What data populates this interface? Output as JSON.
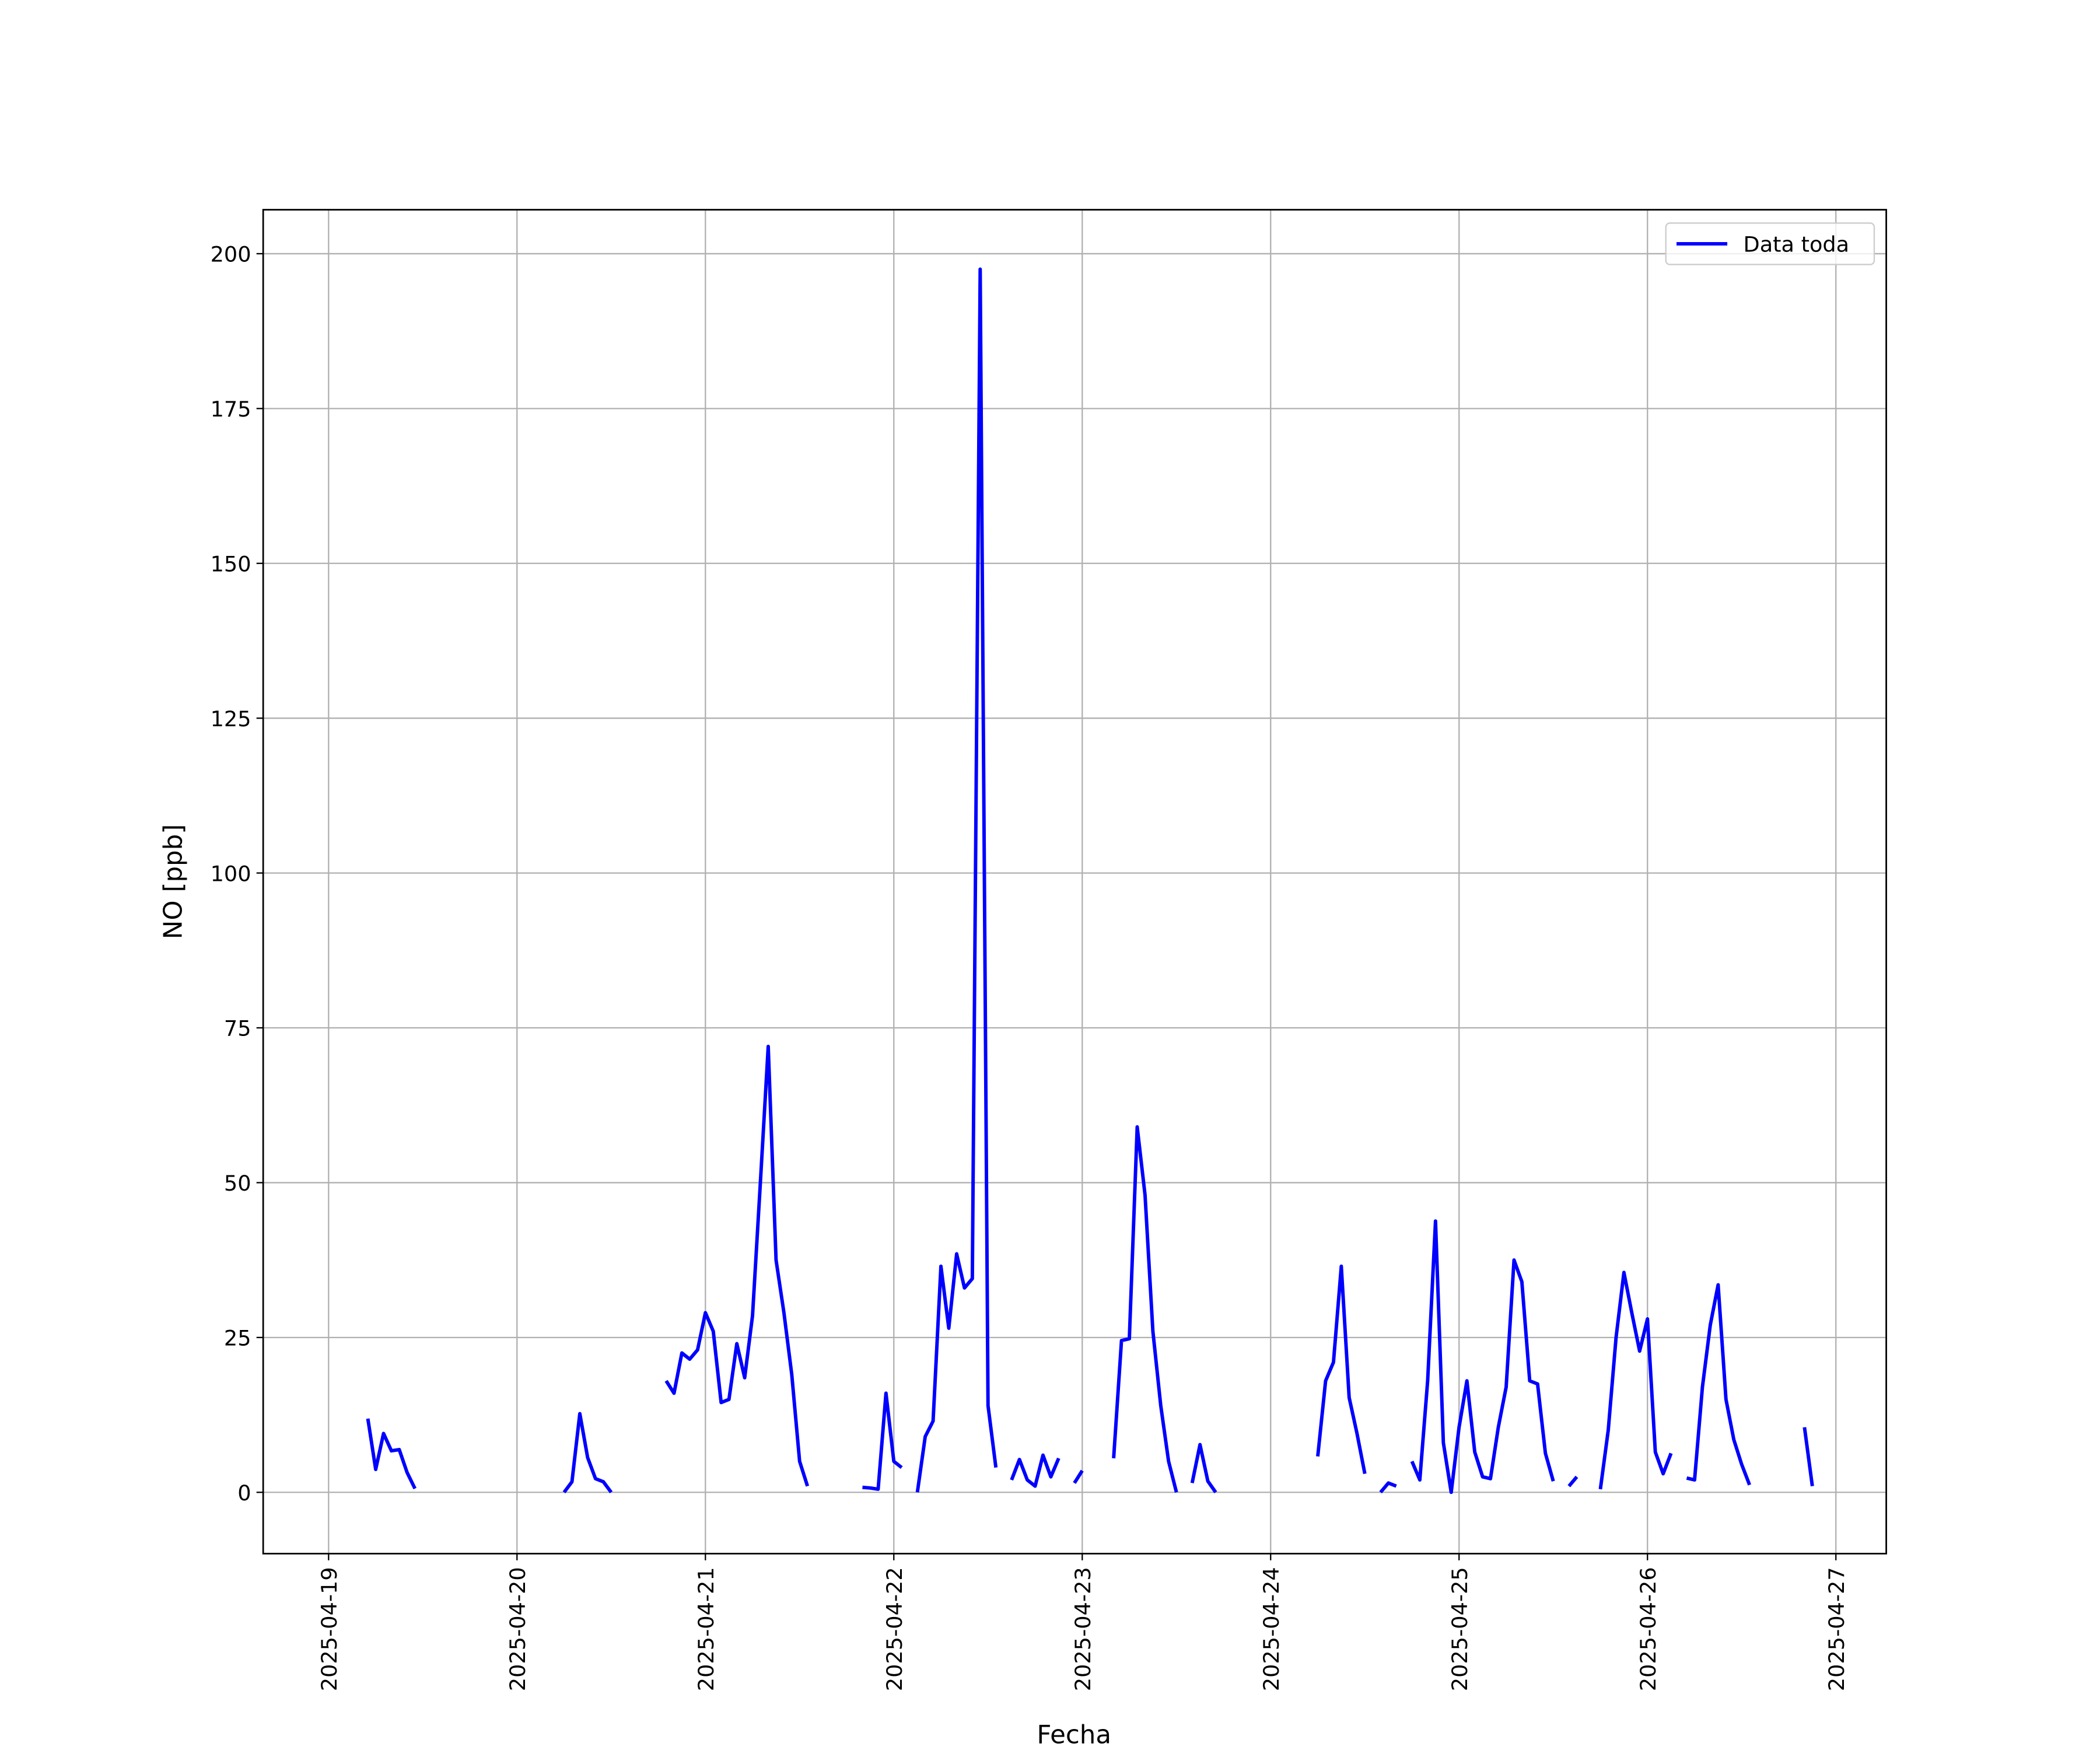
{
  "chart_data": {
    "type": "line",
    "xlabel": "Fecha",
    "ylabel": "NO [ppb]",
    "grid": true,
    "legend": "upper right",
    "xlim": [
      "2025-04-18 15:40",
      "2025-04-27 06:25"
    ],
    "xticks": [
      "2025-04-19",
      "2025-04-20",
      "2025-04-21",
      "2025-04-22",
      "2025-04-23",
      "2025-04-24",
      "2025-04-25",
      "2025-04-26",
      "2025-04-27"
    ],
    "ylim": [
      -9.9,
      207.1
    ],
    "yticks": [
      0,
      25,
      50,
      75,
      100,
      125,
      150,
      175,
      200
    ],
    "x": [
      "2025-04-19 05:00",
      "2025-04-19 06:00",
      "2025-04-19 07:00",
      "2025-04-19 08:00",
      "2025-04-19 09:00",
      "2025-04-19 10:00",
      "2025-04-19 11:00",
      "2025-04-19 12:00",
      "2025-04-20 06:00",
      "2025-04-20 07:00",
      "2025-04-20 08:00",
      "2025-04-20 09:00",
      "2025-04-20 10:00",
      "2025-04-20 11:00",
      "2025-04-20 12:00",
      "2025-04-20 13:00",
      "2025-04-20 19:00",
      "2025-04-20 20:00",
      "2025-04-20 21:00",
      "2025-04-20 22:00",
      "2025-04-20 23:00",
      "2025-04-21 00:00",
      "2025-04-21 01:00",
      "2025-04-21 02:00",
      "2025-04-21 03:00",
      "2025-04-21 04:00",
      "2025-04-21 05:00",
      "2025-04-21 06:00",
      "2025-04-21 07:00",
      "2025-04-21 08:00",
      "2025-04-21 09:00",
      "2025-04-21 10:00",
      "2025-04-21 11:00",
      "2025-04-21 12:00",
      "2025-04-21 13:00",
      "2025-04-21 14:00",
      "2025-04-21 20:00",
      "2025-04-21 21:00",
      "2025-04-21 22:00",
      "2025-04-21 23:00",
      "2025-04-22 00:00",
      "2025-04-22 01:00",
      "2025-04-22 02:00",
      "2025-04-22 03:00",
      "2025-04-22 04:00",
      "2025-04-22 05:00",
      "2025-04-22 06:00",
      "2025-04-22 07:00",
      "2025-04-22 08:00",
      "2025-04-22 09:00",
      "2025-04-22 10:00",
      "2025-04-22 11:00",
      "2025-04-22 12:00",
      "2025-04-22 13:00",
      "2025-04-22 14:00",
      "2025-04-22 15:00",
      "2025-04-22 16:00",
      "2025-04-22 17:00",
      "2025-04-22 18:00",
      "2025-04-22 19:00",
      "2025-04-22 20:00",
      "2025-04-22 21:00",
      "2025-04-22 22:00",
      "2025-04-22 23:00",
      "2025-04-23 00:00",
      "2025-04-23 01:00",
      "2025-04-23 04:00",
      "2025-04-23 05:00",
      "2025-04-23 06:00",
      "2025-04-23 07:00",
      "2025-04-23 08:00",
      "2025-04-23 09:00",
      "2025-04-23 10:00",
      "2025-04-23 11:00",
      "2025-04-23 12:00",
      "2025-04-23 13:00",
      "2025-04-23 14:00",
      "2025-04-23 15:00",
      "2025-04-23 16:00",
      "2025-04-23 17:00",
      "2025-04-23 18:00",
      "2025-04-24 06:00",
      "2025-04-24 07:00",
      "2025-04-24 08:00",
      "2025-04-24 09:00",
      "2025-04-24 10:00",
      "2025-04-24 11:00",
      "2025-04-24 12:00",
      "2025-04-24 13:00",
      "2025-04-24 14:00",
      "2025-04-24 15:00",
      "2025-04-24 16:00",
      "2025-04-24 17:00",
      "2025-04-24 18:00",
      "2025-04-24 19:00",
      "2025-04-24 20:00",
      "2025-04-24 21:00",
      "2025-04-24 22:00",
      "2025-04-24 23:00",
      "2025-04-25 00:00",
      "2025-04-25 01:00",
      "2025-04-25 02:00",
      "2025-04-25 03:00",
      "2025-04-25 04:00",
      "2025-04-25 05:00",
      "2025-04-25 06:00",
      "2025-04-25 07:00",
      "2025-04-25 08:00",
      "2025-04-25 09:00",
      "2025-04-25 10:00",
      "2025-04-25 11:00",
      "2025-04-25 12:00",
      "2025-04-25 13:00",
      "2025-04-25 14:00",
      "2025-04-25 15:00",
      "2025-04-25 16:00",
      "2025-04-25 18:00",
      "2025-04-25 19:00",
      "2025-04-25 20:00",
      "2025-04-25 21:00",
      "2025-04-25 22:00",
      "2025-04-25 23:00",
      "2025-04-26 00:00",
      "2025-04-26 01:00",
      "2025-04-26 02:00",
      "2025-04-26 03:00",
      "2025-04-26 04:00",
      "2025-04-26 05:00",
      "2025-04-26 06:00",
      "2025-04-26 07:00",
      "2025-04-26 08:00",
      "2025-04-26 09:00",
      "2025-04-26 10:00",
      "2025-04-26 11:00",
      "2025-04-26 12:00",
      "2025-04-26 13:00",
      "2025-04-26 14:00",
      "2025-04-26 20:00",
      "2025-04-26 21:00"
    ],
    "series": [
      {
        "name": "Data toda",
        "color": "#0000ff",
        "values": [
          11.9,
          3.7,
          9.5,
          6.7,
          6.9,
          3.2,
          0.6,
          null,
          0,
          1.7,
          12.7,
          5.6,
          2.2,
          1.7,
          0,
          null,
          18,
          16,
          22.5,
          21.5,
          23,
          29,
          26,
          14.5,
          15,
          24,
          18.5,
          28.5,
          50,
          72,
          37.5,
          29,
          19,
          5,
          1,
          null,
          0.8,
          0.7,
          0.5,
          16,
          5,
          4,
          null,
          0,
          9,
          11.5,
          36.5,
          26.5,
          38.5,
          33,
          34.5,
          197.5,
          14,
          4,
          null,
          2,
          5.3,
          2,
          1,
          6,
          2.5,
          5.5,
          null,
          1.5,
          3.5,
          null,
          5.5,
          24.5,
          24.8,
          59,
          48,
          26,
          14,
          5,
          0,
          null,
          1.5,
          7.7,
          1.8,
          0,
          null,
          5.8,
          18,
          21,
          36.5,
          15.3,
          9.5,
          3,
          null,
          0,
          1.5,
          1,
          null,
          5,
          2,
          18,
          43.8,
          8,
          0,
          10.5,
          18,
          6.5,
          2.5,
          2.2,
          10.5,
          17,
          37.5,
          34,
          18,
          17.5,
          6.3,
          1.8,
          null,
          1,
          2.5,
          null,
          0.5,
          10,
          25,
          35.5,
          29,
          22.8,
          28,
          6.5,
          3,
          6.3,
          null,
          2.3,
          2,
          17,
          27,
          33.5,
          15,
          8.5,
          4.5,
          1.2,
          null,
          10.5,
          1
        ]
      }
    ]
  }
}
